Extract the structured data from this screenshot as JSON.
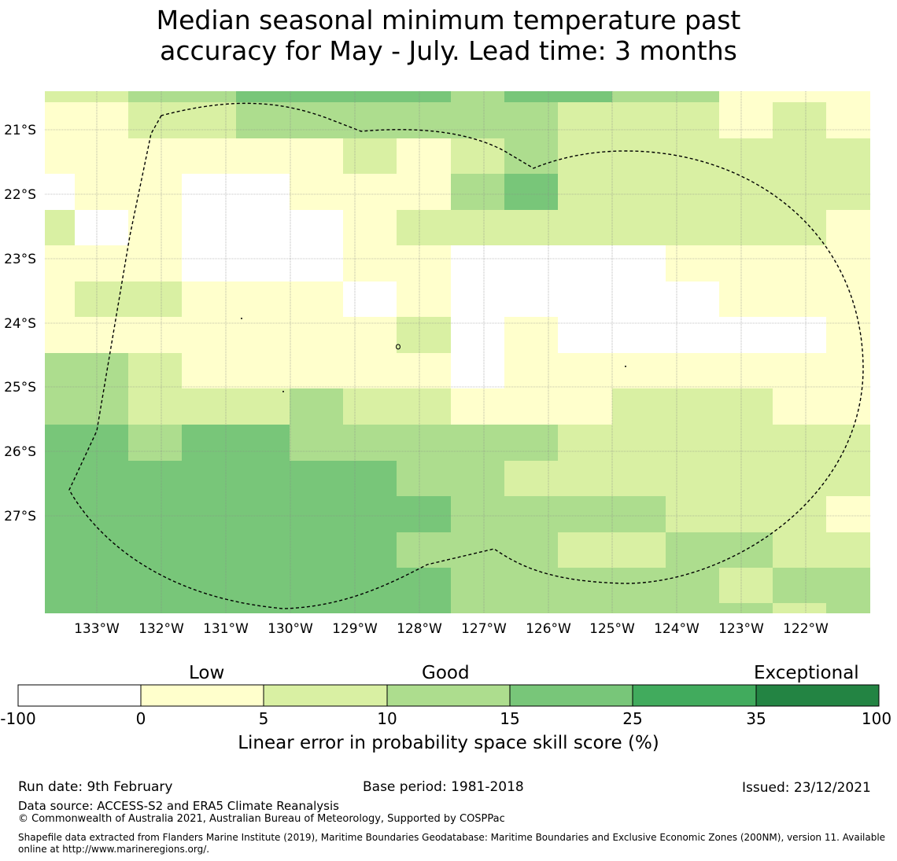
{
  "title_line1": "Median seasonal minimum temperature past",
  "title_line2": "accuracy for May - July. Lead time: 3 months",
  "map": {
    "lat_labels": [
      "21°S",
      "22°S",
      "23°S",
      "24°S",
      "25°S",
      "26°S",
      "27°S"
    ],
    "lon_labels": [
      "133°W",
      "132°W",
      "131°W",
      "130°W",
      "129°W",
      "128°W",
      "127°W",
      "126°W",
      "125°W",
      "124°W",
      "123°W",
      "122°W"
    ],
    "boundary_style": "dashed",
    "grid_color": "#888888",
    "category_colors": [
      "#ffffff",
      "#ffffcc",
      "#d9f0a3",
      "#addd8e",
      "#78c679",
      "#41ab5d",
      "#238443"
    ]
  },
  "colorbar": {
    "category_labels": [
      "Low",
      "Good",
      "Exceptional"
    ],
    "ticks": [
      "-100",
      "0",
      "5",
      "10",
      "15",
      "25",
      "35",
      "100"
    ],
    "label": "Linear error in probability space skill score (%)"
  },
  "footer": {
    "run_date": "Run date: 9th February",
    "base_period": "Base period: 1981-2018",
    "issued": "Issued: 23/12/2021",
    "data_source": "Data source: ACCESS-S2 and ERA5 Climate Reanalysis",
    "copyright": "© Commonwealth of Australia 2021, Australian Bureau of Meteorology, Supported by COSPPac",
    "shapefile": "Shapefile data extracted from Flanders Marine Institute (2019), Maritime Boundaries Geodatabase: Maritime Boundaries and Exclusive Economic Zones (200NM), version 11. Available online at http://www.marineregions.org/."
  }
}
